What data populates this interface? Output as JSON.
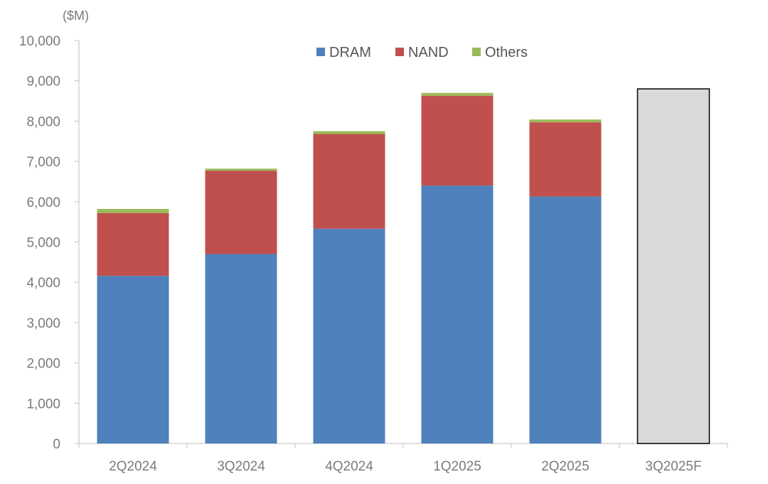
{
  "chart_data": {
    "type": "bar",
    "stacked": true,
    "title": "",
    "unit_label": "($M)",
    "xlabel": "",
    "ylabel": "",
    "ylim": [
      0,
      10000
    ],
    "yticks": [
      0,
      1000,
      2000,
      3000,
      4000,
      5000,
      6000,
      7000,
      8000,
      9000,
      10000
    ],
    "ytick_labels": [
      "0",
      "1,000",
      "2,000",
      "3,000",
      "4,000",
      "5,000",
      "6,000",
      "7,000",
      "8,000",
      "9,000",
      "10,000"
    ],
    "categories": [
      "2Q2024",
      "3Q2024",
      "4Q2024",
      "1Q2025",
      "2Q2025",
      "3Q2025F"
    ],
    "series": [
      {
        "name": "DRAM",
        "color": "#4f81bd",
        "values": [
          4160,
          4700,
          5330,
          6400,
          6130,
          null
        ]
      },
      {
        "name": "NAND",
        "color": "#c0504d",
        "values": [
          1560,
          2070,
          2350,
          2230,
          1840,
          null
        ]
      },
      {
        "name": "Others",
        "color": "#9bbb59",
        "values": [
          100,
          50,
          70,
          70,
          70,
          null
        ]
      }
    ],
    "forecast": {
      "category": "3Q2025F",
      "total": 8800,
      "fill": "#d9d9d9",
      "stroke": "#000000"
    },
    "grid": false,
    "legend": {
      "position": "top-center",
      "items": [
        "DRAM",
        "NAND",
        "Others"
      ]
    },
    "axis_color": "#bfbfbf"
  }
}
